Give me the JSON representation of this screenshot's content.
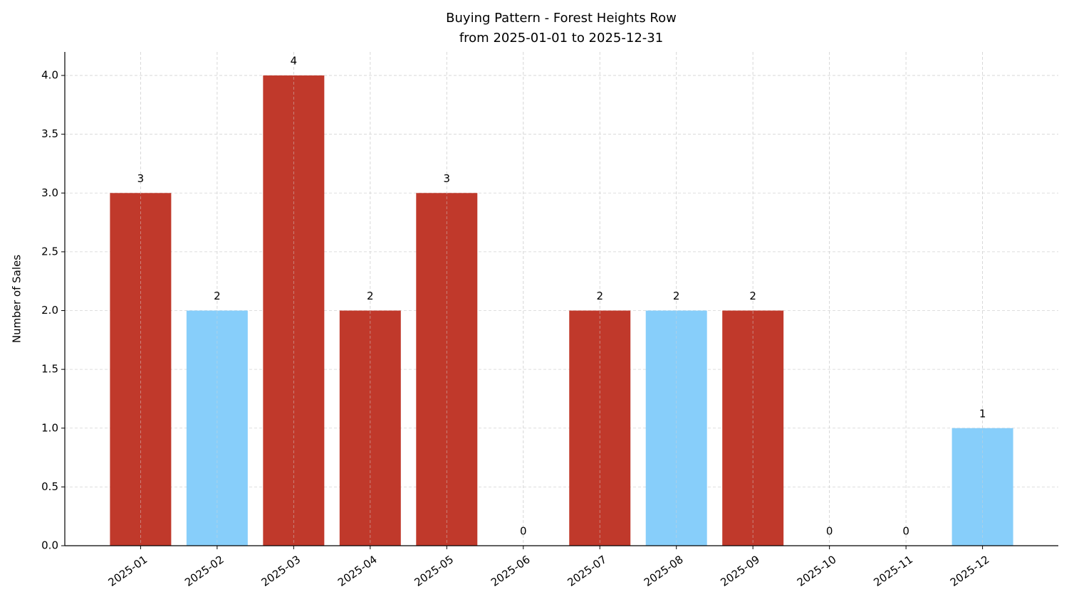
{
  "chart_data": {
    "type": "bar",
    "title": "Buying Pattern - Forest Heights Row",
    "subtitle": "from 2025-01-01 to 2025-12-31",
    "y_label": "Number of Sales",
    "categories": [
      "2025-01",
      "2025-02",
      "2025-03",
      "2025-04",
      "2025-05",
      "2025-06",
      "2025-07",
      "2025-08",
      "2025-09",
      "2025-10",
      "2025-11",
      "2025-12"
    ],
    "values": [
      3,
      2,
      4,
      2,
      3,
      0,
      2,
      2,
      2,
      0,
      0,
      1
    ],
    "colors": [
      "#c0392b",
      "#87cefa",
      "#c0392b",
      "#c0392b",
      "#c0392b",
      null,
      "#c0392b",
      "#87cefa",
      "#c0392b",
      null,
      null,
      "#87cefa"
    ],
    "ylim": [
      0,
      4.2
    ],
    "yticks": [
      {
        "value": 0,
        "label": "0.0"
      },
      0.5,
      {
        "value": 1,
        "label": "1.0"
      },
      1.5,
      {
        "value": 2,
        "label": "2.0"
      },
      2.5,
      {
        "value": 3,
        "label": "3.0"
      },
      3.5,
      {
        "value": 4,
        "label": "4.0"
      }
    ],
    "grid": true
  }
}
